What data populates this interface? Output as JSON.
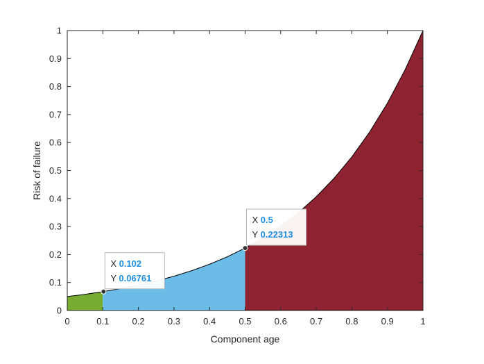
{
  "chart_data": {
    "type": "area",
    "xlabel": "Component age",
    "ylabel": "Risk of failure",
    "xlim": [
      0,
      1
    ],
    "ylim": [
      0,
      1
    ],
    "xticks": [
      0,
      0.1,
      0.2,
      0.3,
      0.4,
      0.5,
      0.6,
      0.7,
      0.8,
      0.9,
      1
    ],
    "yticks": [
      0,
      0.1,
      0.2,
      0.3,
      0.4,
      0.5,
      0.6,
      0.7,
      0.8,
      0.9,
      1
    ],
    "xtick_labels": [
      "0",
      "0.1",
      "0.2",
      "0.3",
      "0.4",
      "0.5",
      "0.6",
      "0.7",
      "0.8",
      "0.9",
      "1"
    ],
    "ytick_labels": [
      "0",
      "0.1",
      "0.2",
      "0.3",
      "0.4",
      "0.5",
      "0.6",
      "0.7",
      "0.8",
      "0.9",
      "1"
    ],
    "curve": {
      "x": [
        0,
        0.05,
        0.1,
        0.15,
        0.2,
        0.25,
        0.3,
        0.35,
        0.4,
        0.45,
        0.5,
        0.55,
        0.6,
        0.65,
        0.7,
        0.75,
        0.8,
        0.85,
        0.9,
        0.95,
        1
      ],
      "y": [
        0.0498,
        0.0578,
        0.0672,
        0.0781,
        0.0907,
        0.1054,
        0.1225,
        0.1423,
        0.1653,
        0.192,
        0.2231,
        0.2592,
        0.3012,
        0.3499,
        0.4066,
        0.4724,
        0.5488,
        0.6376,
        0.7408,
        0.8607,
        1.0
      ]
    },
    "regions": [
      {
        "x_start": 0,
        "x_end": 0.1,
        "color": "#77ac30"
      },
      {
        "x_start": 0.1,
        "x_end": 0.5,
        "color": "#6bbde8"
      },
      {
        "x_start": 0.5,
        "x_end": 1,
        "color": "#8f2332"
      }
    ],
    "datatips": [
      {
        "x": 0.102,
        "y": 0.06761,
        "x_label": "X",
        "y_label": "Y",
        "x_text": "0.102",
        "y_text": "0.06761"
      },
      {
        "x": 0.5,
        "y": 0.22313,
        "x_label": "X",
        "y_label": "Y",
        "x_text": "0.5",
        "y_text": "0.22313"
      }
    ],
    "grid": false
  }
}
